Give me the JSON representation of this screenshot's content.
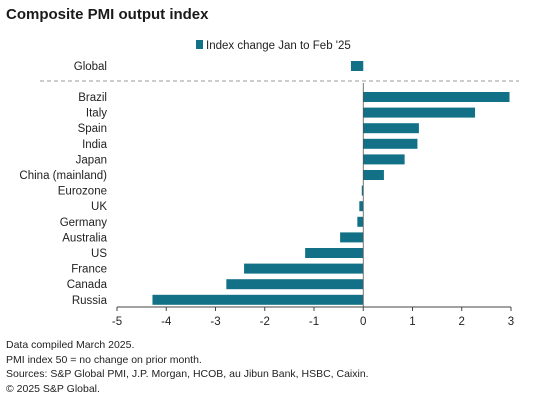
{
  "chart_data": {
    "type": "bar",
    "orientation": "horizontal",
    "title": "Composite PMI output index",
    "legend": {
      "label": "Index change Jan to Feb '25",
      "position": "top"
    },
    "bar_color": "#137187",
    "xlim": [
      -5,
      3
    ],
    "xticks": [
      -5,
      -4,
      -3,
      -2,
      -1,
      0,
      1,
      2,
      3
    ],
    "grid": false,
    "highlight": {
      "category": "Global",
      "value": -0.25
    },
    "categories": [
      "Brazil",
      "Italy",
      "Spain",
      "India",
      "Japan",
      "China (mainland)",
      "Eurozone",
      "UK",
      "Germany",
      "Australia",
      "US",
      "France",
      "Canada",
      "Russia"
    ],
    "values": [
      2.97,
      2.27,
      1.13,
      1.1,
      0.84,
      0.42,
      -0.03,
      -0.08,
      -0.12,
      -0.47,
      -1.18,
      -2.42,
      -2.78,
      -4.28
    ]
  },
  "notes": [
    "Data compiled March 2025.",
    "PMI index 50 = no change on prior month.",
    "Sources: S&P Global PMI, J.P. Morgan, HCOB, au Jibun Bank, HSBC, Caixin.",
    "© 2025 S&P Global."
  ]
}
